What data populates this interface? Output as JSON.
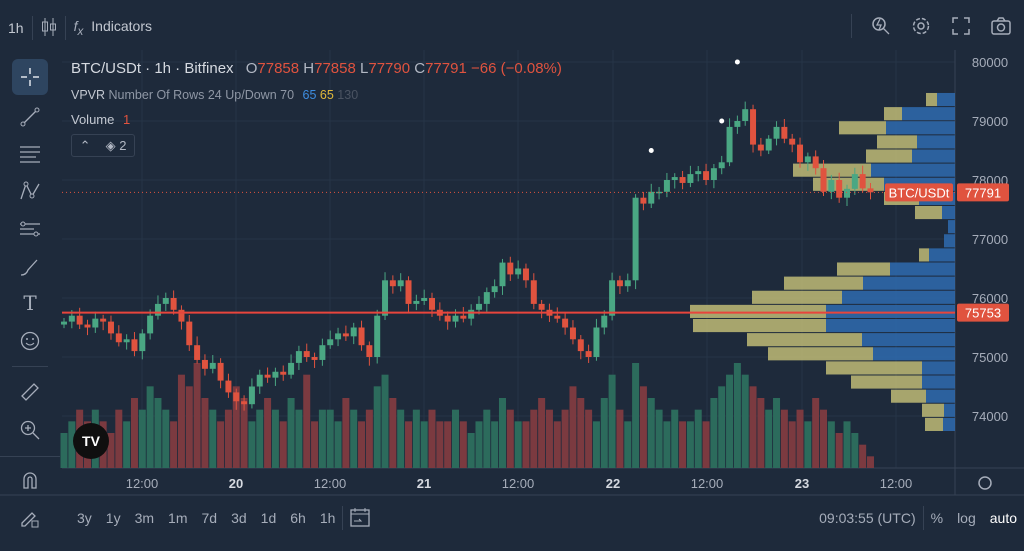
{
  "toolbar": {
    "interval": "1h",
    "indicators": "Indicators",
    "icons": [
      "candle-type-icon",
      "fx-icon",
      "quick-search-icon",
      "gear-icon",
      "fullscreen-icon",
      "camera-icon"
    ]
  },
  "legend": {
    "symbol": "BTC/USDt · 1h · Bitfinex",
    "o_label": "O",
    "o": "77858",
    "h_label": "H",
    "h": "77858",
    "l_label": "L",
    "l": "77790",
    "c_label": "C",
    "c": "77791",
    "change": "−66 (−0.08%)",
    "vpvr_name": "VPVR",
    "vpvr_params": "Number Of Rows 24 Up/Down 70",
    "vpvr_v1": "65",
    "vpvr_v2": "65",
    "vpvr_v3": "130",
    "volume_name": "Volume",
    "volume_value": "1",
    "collapse_count": "2"
  },
  "colors": {
    "up": "#4aa783",
    "down": "#e0533f",
    "vol_up": "#2c6b5c",
    "vol_down": "#7b3a40",
    "vpvr_up": "#2f6bb0",
    "vpvr_down": "#c9c47a",
    "hline": "#e8453c",
    "background": "#1e2a3b"
  },
  "sidebar": {
    "icons": [
      "crosshair-icon",
      "trendline-icon",
      "fib-icon",
      "pattern-icon",
      "forecast-icon",
      "brush-icon",
      "text-icon",
      "emoji-icon",
      "ruler-icon",
      "zoom-in-icon",
      "magnet-icon",
      "lock-drawings-icon"
    ]
  },
  "bottom": {
    "ranges": [
      "3y",
      "1y",
      "3m",
      "1m",
      "7d",
      "3d",
      "1d",
      "6h",
      "1h"
    ],
    "time": "09:03:55 (UTC)",
    "percent": "%",
    "log": "log",
    "auto": "auto"
  },
  "chart_data": {
    "type": "candlestick",
    "symbol_label": "BTC/USDt",
    "last_price": 77791,
    "horizontal_line": 75753,
    "ylim": [
      73400,
      80300
    ],
    "yticks": [
      80000,
      79000,
      78000,
      77000,
      76000,
      75000,
      74000
    ],
    "xticks": [
      "12:00",
      "20",
      "12:00",
      "21",
      "12:00",
      "22",
      "12:00",
      "23",
      "12:00"
    ],
    "closes": [
      75600,
      75700,
      75550,
      75500,
      75650,
      75600,
      75400,
      75250,
      75300,
      75100,
      75400,
      75700,
      75900,
      76000,
      75800,
      75600,
      75200,
      74950,
      74800,
      74900,
      74600,
      74400,
      74250,
      74200,
      74500,
      74700,
      74650,
      74750,
      74700,
      74900,
      75100,
      75000,
      74950,
      75200,
      75300,
      75400,
      75350,
      75500,
      75200,
      75000,
      75700,
      76300,
      76200,
      76300,
      75900,
      75950,
      76000,
      75800,
      75700,
      75600,
      75700,
      75650,
      75800,
      75900,
      76100,
      76200,
      76600,
      76400,
      76500,
      76300,
      75900,
      75800,
      75700,
      75650,
      75500,
      75300,
      75100,
      75000,
      75500,
      75700,
      76300,
      76200,
      76300,
      77700,
      77600,
      77800,
      77800,
      78000,
      78050,
      77950,
      78100,
      78150,
      78000,
      78200,
      78300,
      78900,
      79000,
      79200,
      78600,
      78500,
      78700,
      78900,
      78700,
      78600,
      78300,
      78400,
      78200,
      77800,
      78000,
      77700,
      77850,
      78100,
      77858,
      77791
    ],
    "volumes": [
      3,
      4,
      5,
      4,
      5,
      4,
      3,
      5,
      4,
      6,
      5,
      7,
      6,
      5,
      4,
      8,
      7,
      9,
      6,
      5,
      4,
      5,
      7,
      6,
      4,
      5,
      6,
      5,
      4,
      6,
      5,
      8,
      4,
      5,
      5,
      4,
      6,
      5,
      4,
      5,
      7,
      8,
      6,
      5,
      4,
      5,
      4,
      5,
      4,
      4,
      5,
      4,
      3,
      4,
      5,
      4,
      6,
      5,
      4,
      4,
      5,
      6,
      5,
      4,
      5,
      7,
      6,
      5,
      4,
      6,
      8,
      5,
      4,
      9,
      7,
      6,
      5,
      4,
      5,
      4,
      4,
      5,
      4,
      6,
      7,
      8,
      9,
      8,
      7,
      6,
      5,
      6,
      5,
      4,
      5,
      4,
      6,
      5,
      4,
      3,
      4,
      3,
      2,
      1
    ],
    "signal_markers": [
      75,
      84,
      86
    ],
    "vpvr": {
      "rows": 24,
      "up": [
        18,
        53,
        69,
        38,
        43,
        84,
        71,
        36,
        13,
        7,
        11,
        26,
        65,
        92,
        113,
        129,
        129,
        93,
        82,
        33,
        33,
        29,
        11,
        12
      ],
      "down": [
        11,
        18,
        47,
        40,
        46,
        78,
        71,
        35,
        27,
        0,
        0,
        10,
        53,
        79,
        90,
        136,
        133,
        115,
        105,
        96,
        71,
        35,
        22,
        18
      ]
    }
  }
}
